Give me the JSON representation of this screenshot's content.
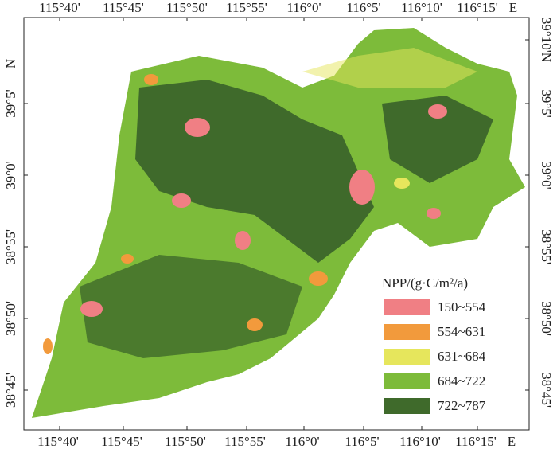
{
  "map": {
    "top_labels": [
      "115°40'",
      "115°45'",
      "115°50'",
      "115°55'",
      "116°0'",
      "116°5'",
      "116°10'",
      "116°15'",
      "E"
    ],
    "bottom_labels": [
      "115°40'",
      "115°45'",
      "115°50'",
      "115°55'",
      "116°0'",
      "116°5'",
      "116°10'",
      "116°15'",
      "E"
    ],
    "left_labels": [
      "N",
      "39°5'",
      "39°0'",
      "38°55'",
      "38°50'",
      "38°45'"
    ],
    "right_labels": [
      "39°10'N",
      "39°5'",
      "39°0'",
      "38°55'",
      "38°50'",
      "38°45'"
    ],
    "legend": {
      "title": "NPP/(g·C/m²/a)",
      "items": [
        {
          "label": "150~554",
          "color": "#f07f84"
        },
        {
          "label": "554~631",
          "color": "#f29a3c"
        },
        {
          "label": "631~684",
          "color": "#e6e65c"
        },
        {
          "label": "684~722",
          "color": "#7dbb3a"
        },
        {
          "label": "722~787",
          "color": "#3f6a2b"
        }
      ]
    }
  }
}
